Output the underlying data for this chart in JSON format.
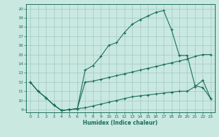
{
  "xlabel": "Humidex (Indice chaleur)",
  "bg_color": "#c8e8e0",
  "grid_color": "#a0c8c0",
  "line_color": "#1a6b5a",
  "xlim": [
    -0.5,
    23.5
  ],
  "ylim": [
    8.7,
    20.5
  ],
  "xticks": [
    0,
    1,
    2,
    3,
    4,
    5,
    6,
    7,
    8,
    9,
    10,
    11,
    12,
    13,
    14,
    15,
    16,
    17,
    18,
    19,
    20,
    21,
    22,
    23
  ],
  "yticks": [
    9,
    10,
    11,
    12,
    13,
    14,
    15,
    16,
    17,
    18,
    19,
    20
  ],
  "line1_x": [
    0,
    1,
    2,
    3,
    4,
    5,
    6,
    7,
    8,
    9,
    10,
    11,
    12,
    13,
    14,
    15,
    16,
    17,
    18,
    19,
    20,
    21,
    22,
    23
  ],
  "line1_y": [
    12,
    11,
    10.3,
    9.5,
    8.9,
    9.0,
    9.1,
    13.3,
    13.8,
    14.8,
    16.0,
    16.3,
    17.4,
    18.3,
    18.8,
    19.2,
    19.6,
    19.8,
    17.7,
    14.9,
    14.9,
    11.6,
    11.4,
    10.2
  ],
  "line2_x": [
    0,
    1,
    2,
    3,
    4,
    5,
    6,
    7,
    8,
    9,
    10,
    11,
    12,
    13,
    14,
    15,
    16,
    17,
    18,
    19,
    20,
    21,
    22,
    23
  ],
  "line2_y": [
    12,
    11,
    10.3,
    9.5,
    8.9,
    9.0,
    9.1,
    12.0,
    12.1,
    12.3,
    12.5,
    12.7,
    12.9,
    13.1,
    13.3,
    13.5,
    13.7,
    13.9,
    14.1,
    14.3,
    14.5,
    14.8,
    15.0,
    15.0
  ],
  "line3_x": [
    0,
    1,
    2,
    3,
    4,
    5,
    6,
    7,
    8,
    9,
    10,
    11,
    12,
    13,
    14,
    15,
    16,
    17,
    18,
    19,
    20,
    21,
    22,
    23
  ],
  "line3_y": [
    12,
    11,
    10.3,
    9.5,
    8.9,
    9.0,
    9.1,
    9.2,
    9.4,
    9.6,
    9.8,
    10.0,
    10.2,
    10.4,
    10.5,
    10.6,
    10.7,
    10.8,
    10.9,
    11.0,
    11.0,
    11.5,
    12.2,
    10.2
  ]
}
